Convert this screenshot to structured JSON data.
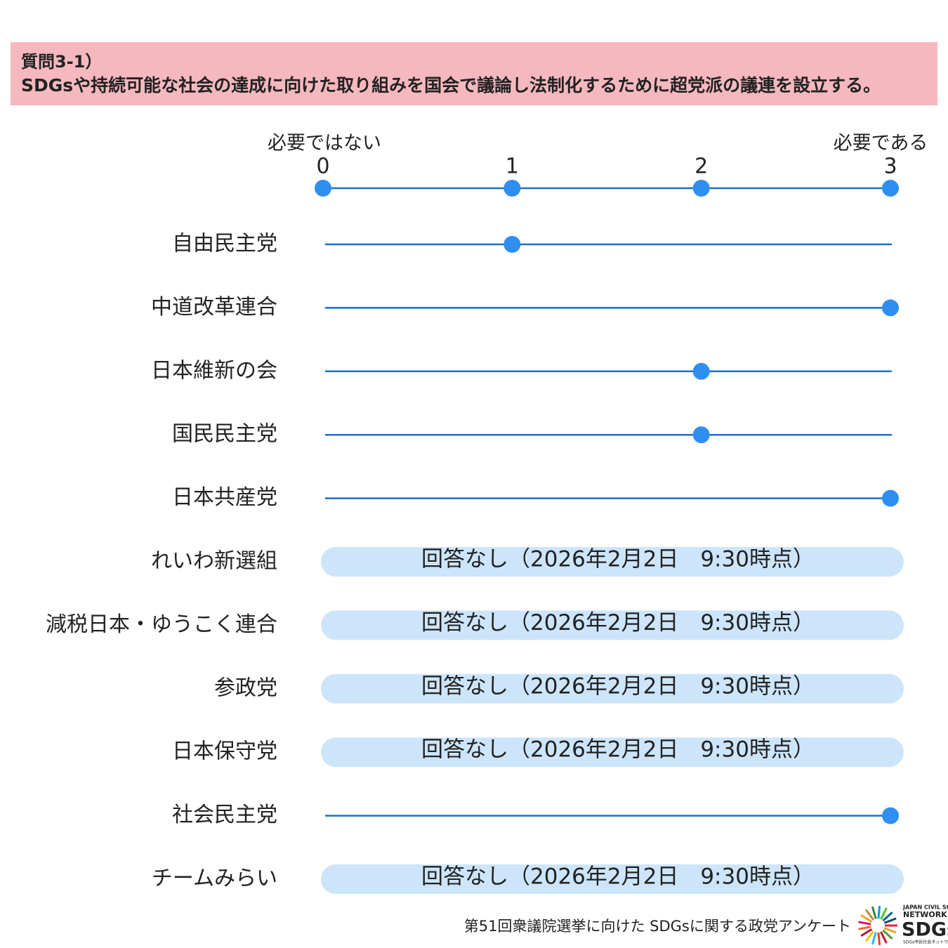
{
  "chart_data": {
    "type": "dot",
    "title": "質問3-1）",
    "subtitle": "SDGsや持続可能な社会の達成に向けた取り組みを国会で議論し法制化するために超党派の議連を設立する。",
    "x_min_label": "必要ではない",
    "x_max_label": "必要である",
    "xlim": [
      0,
      3
    ],
    "xticks": [
      0,
      1,
      2,
      3
    ],
    "color": "#2e8ff0",
    "categories": [
      "自由民主党",
      "中道改革連合",
      "日本維新の会",
      "国民民主党",
      "日本共産党",
      "れいわ新選組",
      "減税日本・ゆうこく連合",
      "参政党",
      "日本保守党",
      "社会民主党",
      "チームみらい"
    ],
    "values": [
      1,
      3,
      2,
      2,
      3,
      null,
      null,
      null,
      null,
      3,
      null
    ],
    "value_labels": [
      null,
      null,
      null,
      null,
      null,
      "回答なし（2026年2月2日　9:30時点）",
      "回答なし（2026年2月2日　9:30時点）",
      "回答なし（2026年2月2日　9:30時点）",
      "回答なし（2026年2月2日　9:30時点）",
      null,
      "回答なし（2026年2月2日　9:30時点）"
    ],
    "footer": "第51回衆議院選挙に向けた SDGsに関する政党アンケート",
    "logo": [
      "JAPAN CIVIL SOCIETY",
      "NETWORK ON",
      "SDGs",
      "SDGs市民社会ネットワーク"
    ]
  }
}
